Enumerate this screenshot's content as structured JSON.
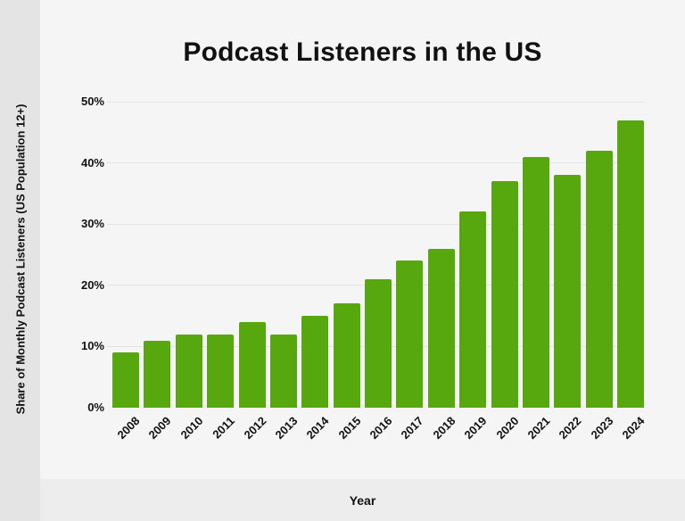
{
  "chart_data": {
    "type": "bar",
    "title": "Podcast Listeners in the US",
    "xlabel": "Year",
    "ylabel": "Share of Monthly Podcast Listeners (US Population 12+)",
    "categories": [
      "2008",
      "2009",
      "2010",
      "2011",
      "2012",
      "2013",
      "2014",
      "2015",
      "2016",
      "2017",
      "2018",
      "2019",
      "2020",
      "2021",
      "2022",
      "2023",
      "2024"
    ],
    "values": [
      9,
      11,
      12,
      12,
      14,
      12,
      15,
      17,
      21,
      24,
      26,
      32,
      37,
      41,
      38,
      42,
      47
    ],
    "unit": "%",
    "ylim": [
      0,
      50
    ],
    "y_tick_labels": [
      "0%",
      "10%",
      "20%",
      "30%",
      "40%",
      "50%"
    ],
    "grid": true,
    "legend_position": "none",
    "bar_color": "#57a70e"
  },
  "colors": {
    "background": "#f5f5f5",
    "left_strip": "#e4e4e4",
    "bottom_band": "#ededed",
    "gridline": "#e3e3e3",
    "text": "#111111",
    "bar": "#57a70e"
  }
}
